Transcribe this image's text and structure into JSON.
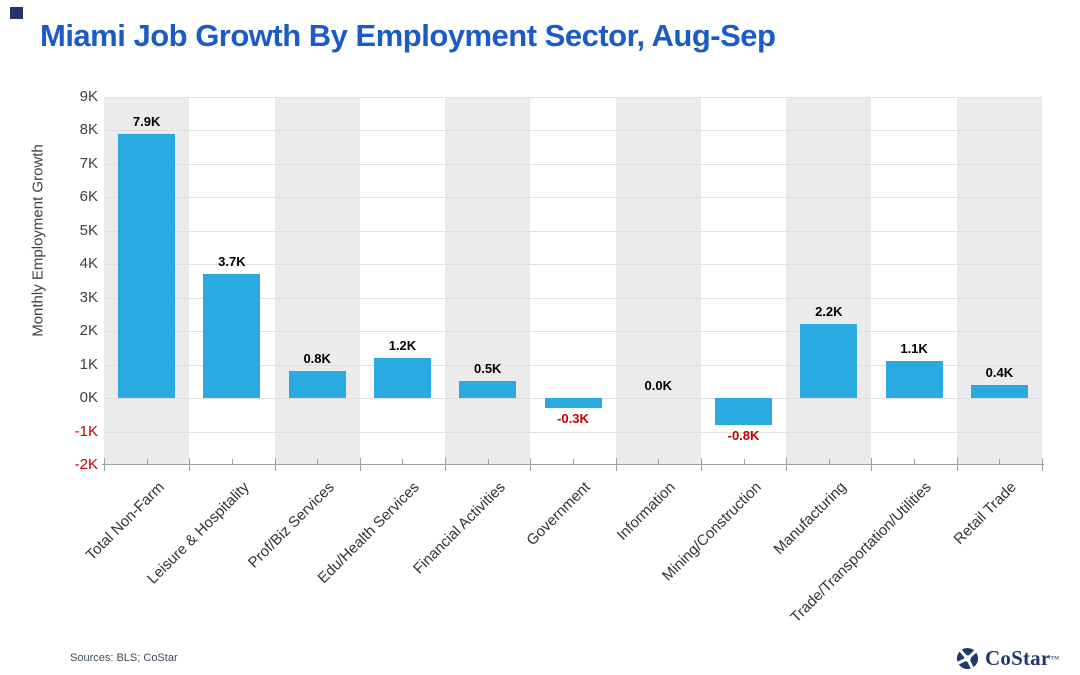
{
  "title": "Miami Job Growth By Employment Sector, Aug-Sep",
  "title_color": "#1A5BC6",
  "corner_mark_color": "#26326E",
  "source_note": "Sources: BLS; CoStar",
  "logo": {
    "text": "CoStar",
    "tm": "™",
    "color": "#1E3A6A"
  },
  "chart_data": {
    "type": "bar",
    "title": "Miami Job Growth By Employment Sector, Aug-Sep",
    "ylabel": "Monthly Employment Growth",
    "xlabel": "",
    "categories": [
      "Total Non-Farm",
      "Leisure & Hospitality",
      "Prof/Biz Services",
      "Edu/Health Services",
      "Financial Activities",
      "Government",
      "Information",
      "Mining/Construction",
      "Manufacturing",
      "Trade/Transportation/Utilities",
      "Retail Trade"
    ],
    "values": [
      7.9,
      3.7,
      0.8,
      1.2,
      0.5,
      -0.3,
      0.0,
      -0.8,
      2.2,
      1.1,
      0.4
    ],
    "value_labels": [
      "7.9K",
      "3.7K",
      "0.8K",
      "1.2K",
      "0.5K",
      "-0.3K",
      "0.0K",
      "-0.8K",
      "2.2K",
      "1.1K",
      "0.4K"
    ],
    "y_ticks": [
      "9K",
      "8K",
      "7K",
      "6K",
      "5K",
      "4K",
      "3K",
      "2K",
      "1K",
      "0K",
      "-1K",
      "-2K"
    ],
    "ylim": [
      -2,
      9
    ],
    "grid": true,
    "legend": false,
    "bar_color": "#29ABE2",
    "band_color": "#EBEBEB",
    "gridline_color": "#E0E0E0",
    "axis_color": "#A0A0A0",
    "tick_label_color": "#404040",
    "negative_color": "#C00000"
  }
}
